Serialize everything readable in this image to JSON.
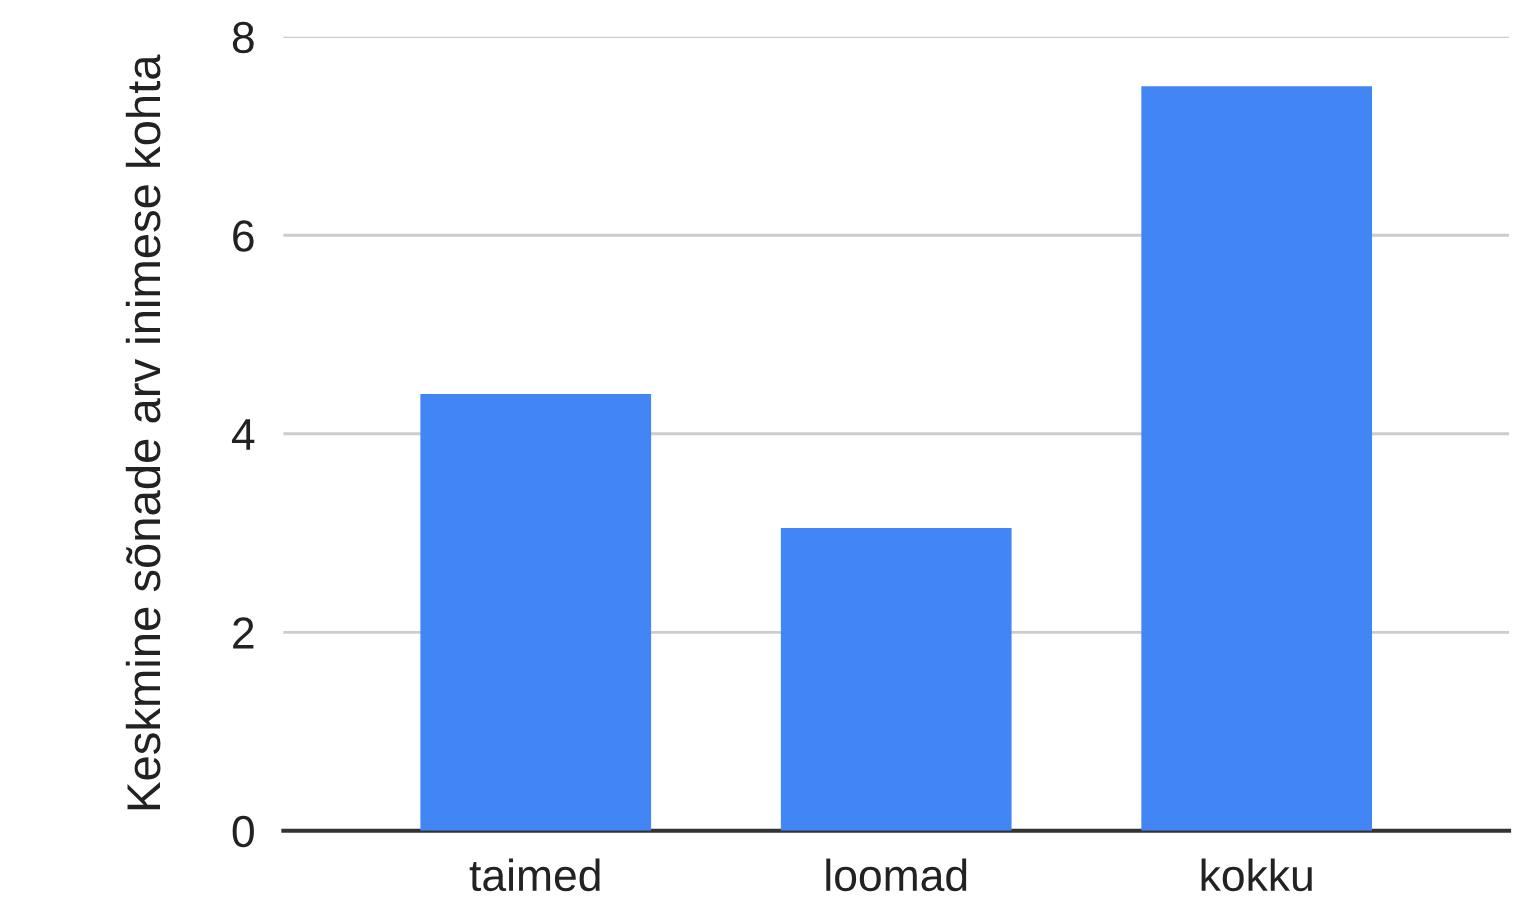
{
  "chart_data": {
    "type": "bar",
    "ylabel": "Keskmine sõnade arv inimese kohta",
    "categories": [
      "taimed",
      "loomad",
      "kokku"
    ],
    "values": [
      4.4,
      3.05,
      7.5
    ],
    "color": "#4285f4",
    "ylim": [
      0,
      8
    ],
    "yticks": [
      0,
      2,
      4,
      6,
      8
    ],
    "grid": "y"
  }
}
